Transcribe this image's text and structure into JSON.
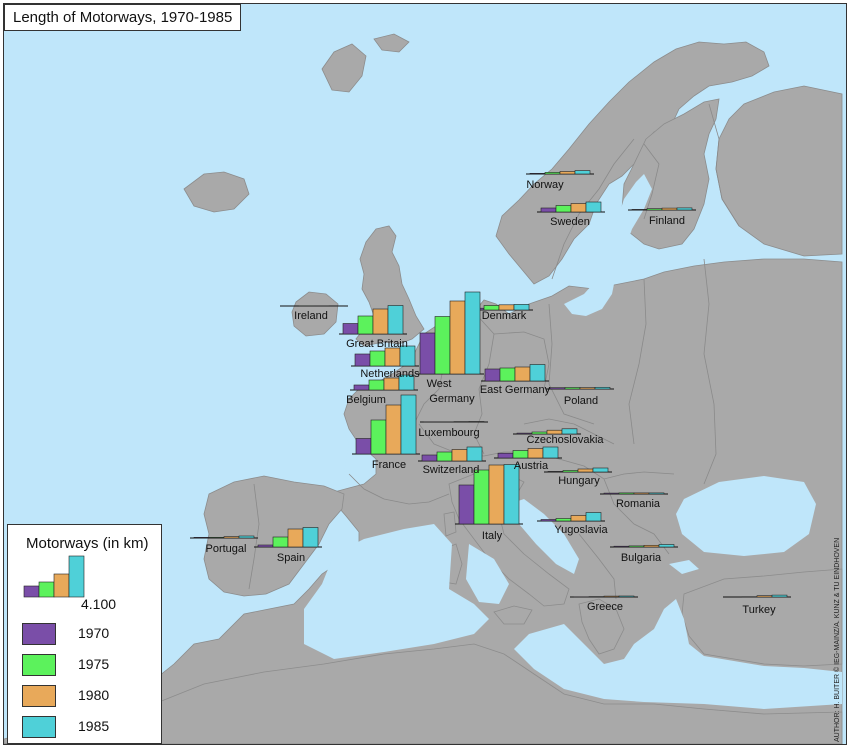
{
  "title": "Length of Motorways, 1970-1985",
  "credit": "AUTHOR: H. BUITER © IEG-MAINZ/A. KUNZ & TU EINDHOVEN",
  "legend": {
    "title": "Motorways (in km)",
    "scale_value": "4.100",
    "scale_km": 4100,
    "items": [
      {
        "year": "1970",
        "color": "#7a4ea8"
      },
      {
        "year": "1975",
        "color": "#5cf25c"
      },
      {
        "year": "1980",
        "color": "#e8a95a"
      },
      {
        "year": "1985",
        "color": "#4fd0d8"
      }
    ]
  },
  "colors": {
    "sea": "#bfe6fa",
    "land": "#a9a9a9",
    "y1970": "#7a4ea8",
    "y1975": "#5cf25c",
    "y1980": "#e8a95a",
    "y1985": "#4fd0d8"
  },
  "chart_data": {
    "type": "bar",
    "title": "Length of Motorways, 1970-1985",
    "series_names": [
      "1970",
      "1975",
      "1980",
      "1985"
    ],
    "unit": "km",
    "countries": [
      {
        "name": "Norway",
        "values": [
          70,
          160,
          250,
          340
        ]
      },
      {
        "name": "Sweden",
        "values": [
          400,
          650,
          850,
          1000
        ]
      },
      {
        "name": "Finland",
        "values": [
          60,
          130,
          190,
          210
        ]
      },
      {
        "name": "Ireland",
        "values": [
          0,
          10,
          20,
          25
        ]
      },
      {
        "name": "Great Britain",
        "values": [
          1050,
          1800,
          2500,
          2850
        ]
      },
      {
        "name": "Denmark",
        "values": [
          180,
          450,
          520,
          560
        ]
      },
      {
        "name": "Netherlands",
        "values": [
          1200,
          1500,
          1800,
          2000
        ]
      },
      {
        "name": "West Germany",
        "values": [
          4100,
          5750,
          7300,
          8200
        ]
      },
      {
        "name": "East Germany",
        "values": [
          1200,
          1300,
          1400,
          1650
        ]
      },
      {
        "name": "Poland",
        "values": [
          130,
          150,
          140,
          170
        ]
      },
      {
        "name": "Belgium",
        "values": [
          500,
          1000,
          1200,
          1500
        ]
      },
      {
        "name": "Luxembourg",
        "values": [
          10,
          20,
          40,
          50
        ]
      },
      {
        "name": "France",
        "values": [
          1550,
          3400,
          4900,
          5900
        ]
      },
      {
        "name": "Czechoslovakia",
        "values": [
          90,
          200,
          380,
          520
        ]
      },
      {
        "name": "Austria",
        "values": [
          480,
          750,
          950,
          1100
        ]
      },
      {
        "name": "Switzerland",
        "values": [
          600,
          900,
          1150,
          1400
        ]
      },
      {
        "name": "Hungary",
        "values": [
          60,
          150,
          300,
          400
        ]
      },
      {
        "name": "Romania",
        "values": [
          90,
          110,
          110,
          110
        ]
      },
      {
        "name": "Italy",
        "values": [
          3900,
          5400,
          5900,
          5950
        ]
      },
      {
        "name": "Portugal",
        "values": [
          70,
          70,
          140,
          200
        ]
      },
      {
        "name": "Spain",
        "values": [
          200,
          1000,
          1800,
          1950
        ]
      },
      {
        "name": "Yugoslavia",
        "values": [
          150,
          250,
          550,
          850
        ]
      },
      {
        "name": "Bulgaria",
        "values": [
          80,
          110,
          170,
          250
        ]
      },
      {
        "name": "Greece",
        "values": [
          10,
          40,
          90,
          100
        ]
      },
      {
        "name": "Turkey",
        "values": [
          0,
          30,
          130,
          190
        ]
      }
    ]
  }
}
